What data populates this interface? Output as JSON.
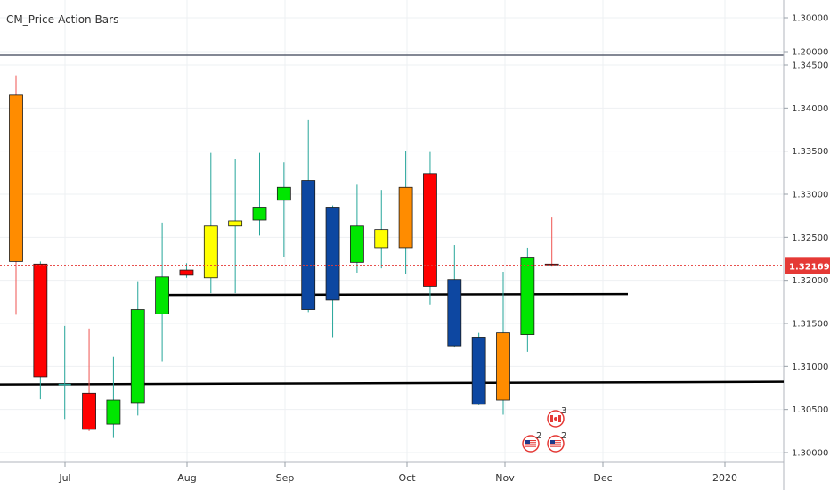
{
  "indicator_pane": {
    "title": "CM_Price-Action-Bars",
    "ticks": [
      "1.30000",
      "1.20000"
    ]
  },
  "price_label": "1.32169",
  "events": [
    {
      "type": "flag-ca",
      "count": "3"
    },
    {
      "type": "flag-us",
      "count": "2"
    },
    {
      "type": "flag-us",
      "count": "2"
    }
  ],
  "colors": {
    "red": "#ff0000",
    "orange": "#ff8c00",
    "green": "#00e600",
    "blue": "#0d47a1",
    "yellow": "#ffff00",
    "wick": "#26a69a",
    "wick_red": "#ef5350",
    "price_line": "#e53935"
  },
  "chart_data": {
    "type": "candlestick",
    "y_axis": {
      "range": [
        1.2995,
        1.3465
      ],
      "ticks": [
        "1.34500",
        "1.34000",
        "1.33500",
        "1.33000",
        "1.32500",
        "1.32000",
        "1.31500",
        "1.31000",
        "1.30500",
        "1.30000"
      ]
    },
    "x_axis": {
      "labels": [
        "Jul",
        "Aug",
        "Sep",
        "Oct",
        "Nov",
        "Dec",
        "2020"
      ]
    },
    "candles": [
      {
        "open": 1.3415,
        "high": 1.3438,
        "low": 1.316,
        "close": 1.3222,
        "color": "orange"
      },
      {
        "open": 1.3219,
        "high": 1.3222,
        "low": 1.3062,
        "close": 1.3088,
        "color": "red"
      },
      {
        "open": 1.3079,
        "high": 1.3147,
        "low": 1.3039,
        "close": 1.3079,
        "color": "none"
      },
      {
        "open": 1.3069,
        "high": 1.3144,
        "low": 1.3025,
        "close": 1.3027,
        "color": "red"
      },
      {
        "open": 1.3033,
        "high": 1.3111,
        "low": 1.3017,
        "close": 1.3061,
        "color": "green"
      },
      {
        "open": 1.3058,
        "high": 1.3199,
        "low": 1.3043,
        "close": 1.3166,
        "color": "green"
      },
      {
        "open": 1.3161,
        "high": 1.3267,
        "low": 1.3106,
        "close": 1.3204,
        "color": "green"
      },
      {
        "open": 1.3212,
        "high": 1.322,
        "low": 1.3203,
        "close": 1.3206,
        "color": "red"
      },
      {
        "open": 1.3203,
        "high": 1.3348,
        "low": 1.3185,
        "close": 1.3263,
        "color": "yellow"
      },
      {
        "open": 1.3263,
        "high": 1.3341,
        "low": 1.3185,
        "close": 1.3269,
        "color": "yellow"
      },
      {
        "open": 1.327,
        "high": 1.3348,
        "low": 1.3252,
        "close": 1.3285,
        "color": "green"
      },
      {
        "open": 1.3293,
        "high": 1.3337,
        "low": 1.3227,
        "close": 1.3308,
        "color": "green"
      },
      {
        "open": 1.3316,
        "high": 1.3386,
        "low": 1.3163,
        "close": 1.3166,
        "color": "blue"
      },
      {
        "open": 1.3285,
        "high": 1.3287,
        "low": 1.3134,
        "close": 1.3177,
        "color": "blue"
      },
      {
        "open": 1.3221,
        "high": 1.3311,
        "low": 1.3209,
        "close": 1.3263,
        "color": "green"
      },
      {
        "open": 1.3259,
        "high": 1.3305,
        "low": 1.3214,
        "close": 1.3238,
        "color": "yellow"
      },
      {
        "open": 1.3238,
        "high": 1.335,
        "low": 1.3207,
        "close": 1.3308,
        "color": "orange"
      },
      {
        "open": 1.3324,
        "high": 1.3349,
        "low": 1.3172,
        "close": 1.3193,
        "color": "red"
      },
      {
        "open": 1.3201,
        "high": 1.3241,
        "low": 1.3122,
        "close": 1.3124,
        "color": "blue"
      },
      {
        "open": 1.3134,
        "high": 1.3139,
        "low": 1.3055,
        "close": 1.3056,
        "color": "blue"
      },
      {
        "open": 1.3061,
        "high": 1.321,
        "low": 1.3044,
        "close": 1.3139,
        "color": "orange"
      },
      {
        "open": 1.3137,
        "high": 1.3238,
        "low": 1.3117,
        "close": 1.3226,
        "color": "green"
      },
      {
        "open": 1.3219,
        "high": 1.3273,
        "low": 1.3216,
        "close": 1.3217,
        "color": "red"
      }
    ],
    "horizontal_lines": [
      1.3183,
      1.308
    ],
    "last_price": 1.32169
  }
}
